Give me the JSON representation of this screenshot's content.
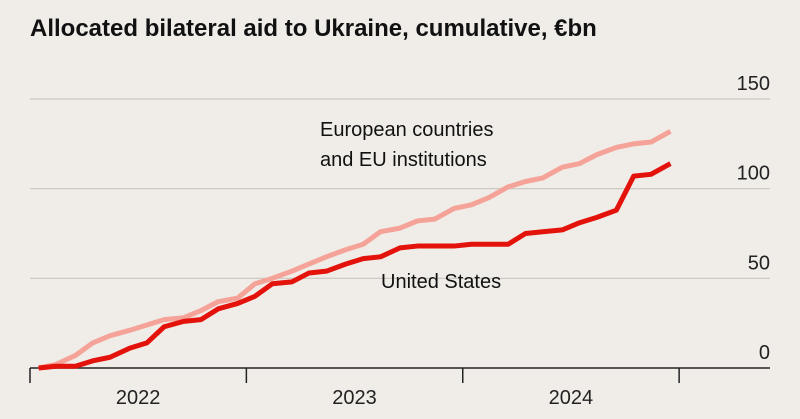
{
  "chart_data": {
    "type": "line",
    "title": "Allocated bilateral aid to Ukraine, cumulative, €bn",
    "x": [
      2022.04,
      2022.12,
      2022.21,
      2022.29,
      2022.37,
      2022.46,
      2022.54,
      2022.62,
      2022.71,
      2022.79,
      2022.87,
      2022.96,
      2023.04,
      2023.12,
      2023.21,
      2023.29,
      2023.37,
      2023.46,
      2023.54,
      2023.62,
      2023.71,
      2023.79,
      2023.87,
      2023.96,
      2024.04,
      2024.12,
      2024.21,
      2024.29,
      2024.37,
      2024.46,
      2024.54,
      2024.62,
      2024.71,
      2024.79,
      2024.87,
      2024.96
    ],
    "series": [
      {
        "name": "European countries and EU institutions",
        "color": "#f5a398",
        "values": [
          0,
          2,
          7,
          14,
          18,
          21,
          24,
          27,
          28,
          32,
          37,
          39,
          47,
          50,
          54,
          58,
          62,
          66,
          69,
          76,
          78,
          82,
          83,
          89,
          91,
          95,
          101,
          104,
          106,
          112,
          114,
          119,
          123,
          125,
          126,
          132
        ]
      },
      {
        "name": "United States",
        "color": "#e3120b",
        "values": [
          0,
          1,
          1,
          4,
          6,
          11,
          14,
          23,
          26,
          27,
          33,
          36,
          40,
          47,
          48,
          53,
          54,
          58,
          61,
          62,
          67,
          68,
          68,
          68,
          69,
          69,
          69,
          75,
          76,
          77,
          81,
          84,
          88,
          107,
          108,
          114
        ]
      }
    ],
    "xlim": [
      2022,
      2025.42
    ],
    "xticks": [
      2022,
      2023,
      2024,
      2025
    ],
    "x_tick_labels": [
      {
        "value": 2022.5,
        "label": "2022"
      },
      {
        "value": 2023.5,
        "label": "2023"
      },
      {
        "value": 2024.5,
        "label": "2024"
      }
    ],
    "ylim": [
      0,
      150
    ],
    "yticks": [
      0,
      50,
      100,
      150
    ],
    "grid": true
  }
}
